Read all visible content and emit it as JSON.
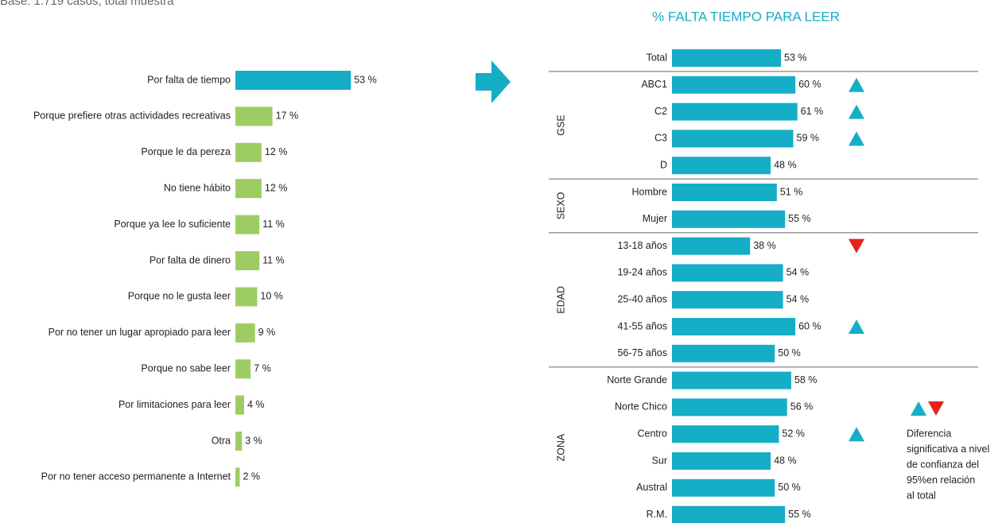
{
  "note": "Base: 1.719 casos, total muestra",
  "chart_data": [
    {
      "type": "hbar",
      "categories": [
        "Por falta de tiempo",
        "Porque prefiere otras actividades recreativas",
        "Porque le da pereza",
        "No tiene hábito",
        "Porque ya lee lo suficiente",
        "Por falta de dinero",
        "Porque no le gusta leer",
        "Por no tener un lugar apropiado para leer",
        "Porque no sabe leer",
        "Por limitaciones para leer",
        "Otra",
        "Por no tener acceso permanente a Internet"
      ],
      "values": [
        53,
        17,
        12,
        12,
        11,
        11,
        10,
        9,
        7,
        4,
        3,
        2
      ],
      "value_labels": [
        "53 %",
        "17 %",
        "12 %",
        "12 %",
        "11 %",
        "11 %",
        "10 %",
        "9 %",
        "7 %",
        "4 %",
        "3 %",
        "2 %"
      ],
      "colors": [
        "#16adc6",
        "#9dcd62",
        "#9dcd62",
        "#9dcd62",
        "#9dcd62",
        "#9dcd62",
        "#9dcd62",
        "#9dcd62",
        "#9dcd62",
        "#9dcd62",
        "#9dcd62",
        "#9dcd62"
      ]
    },
    {
      "type": "hbar",
      "title": "% FALTA TIEMPO PARA LEER",
      "categories": [
        "Total",
        "ABC1",
        "C2",
        "C3",
        "D",
        "Hombre",
        "Mujer",
        "13-18 años",
        "19-24 años",
        "25-40 años",
        "41-55 años",
        "56-75 años",
        "Norte Grande",
        "Norte Chico",
        "Centro",
        "Sur",
        "Austral",
        "R.M."
      ],
      "group": [
        null,
        "GSE",
        "GSE",
        "GSE",
        "GSE",
        "SEXO",
        "SEXO",
        "EDAD",
        "EDAD",
        "EDAD",
        "EDAD",
        "EDAD",
        "ZONA",
        "ZONA",
        "ZONA",
        "ZONA",
        "ZONA",
        "ZONA"
      ],
      "values": [
        53,
        60,
        61,
        59,
        48,
        51,
        55,
        38,
        54,
        54,
        60,
        50,
        58,
        56,
        52,
        48,
        50,
        55
      ],
      "value_labels": [
        "53 %",
        "60 %",
        "61 %",
        "59 %",
        "48 %",
        "51 %",
        "55 %",
        "38 %",
        "54 %",
        "54 %",
        "60 %",
        "50 %",
        "58 %",
        "56 %",
        "52 %",
        "48 %",
        "50 %",
        "55 %"
      ],
      "significance": [
        null,
        "up",
        "up",
        "up",
        null,
        null,
        null,
        "down",
        null,
        null,
        "up",
        null,
        null,
        null,
        "up",
        null,
        null,
        null
      ],
      "color": "#16adc6",
      "up_color": "#16adc6",
      "down_color": "#e3231e",
      "legend_text": [
        "Diferencia",
        "significativa a nivel",
        "de confianza del",
        "95%en relación",
        "al total"
      ]
    }
  ]
}
